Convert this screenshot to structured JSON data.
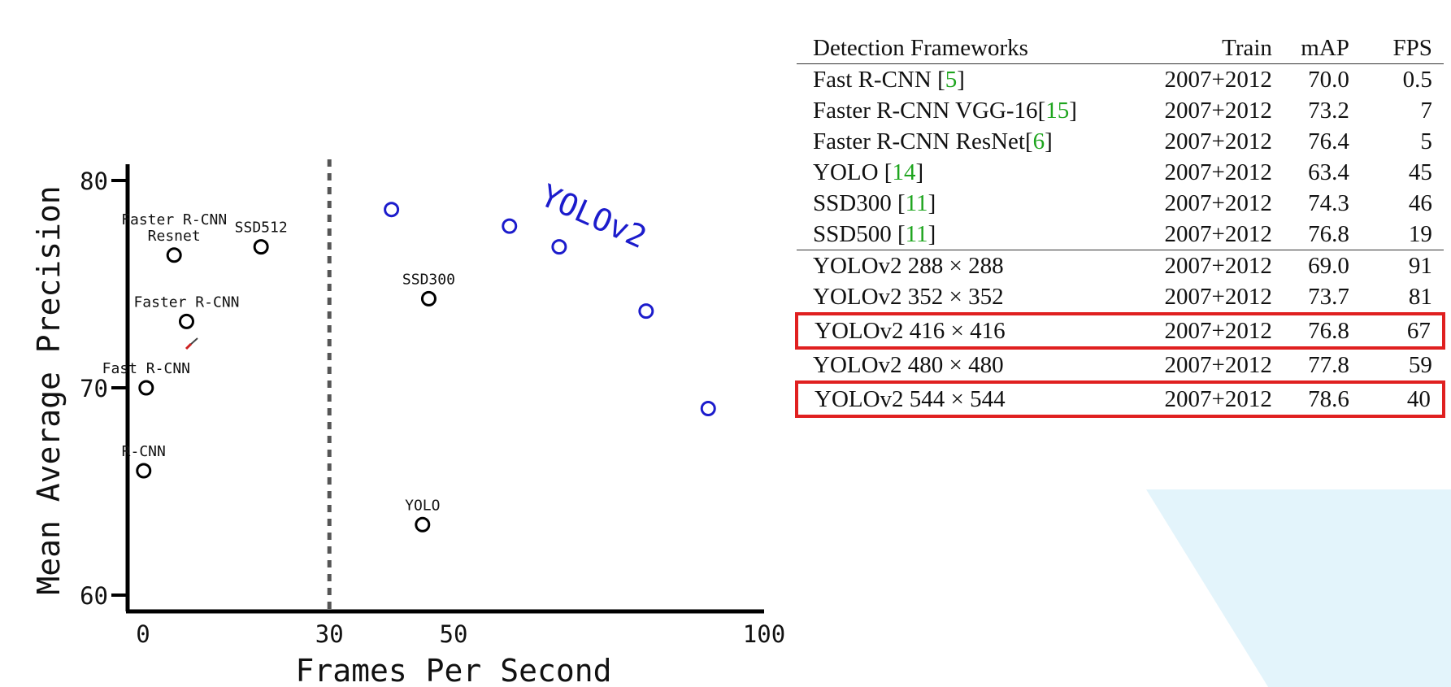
{
  "chart_data": {
    "type": "scatter",
    "xlabel": "Frames Per Second",
    "ylabel": "Mean Average Precision",
    "xlim": [
      0,
      100
    ],
    "ylim": [
      60,
      80
    ],
    "x_ticks": [
      0,
      30,
      50,
      100
    ],
    "y_ticks": [
      60,
      70,
      80
    ],
    "threshold_line": {
      "x": 30,
      "style": "dashed"
    },
    "series": [
      {
        "color": "#000000",
        "points": [
          {
            "label": "Faster R-CNN\nResnet",
            "x": 5,
            "y": 76.4
          },
          {
            "label": "SSD512",
            "x": 19,
            "y": 76.8
          },
          {
            "label": "Faster R-CNN",
            "x": 7,
            "y": 73.2
          },
          {
            "label": "Fast R-CNN",
            "x": 0.5,
            "y": 70.0
          },
          {
            "label": "R-CNN",
            "x": 0.1,
            "y": 66.0
          },
          {
            "label": "SSD300",
            "x": 46,
            "y": 74.3
          },
          {
            "label": "YOLO",
            "x": 45,
            "y": 63.4
          }
        ]
      },
      {
        "name": "YOLOv2",
        "color": "#1c1ccc",
        "points": [
          {
            "x": 40,
            "y": 78.6
          },
          {
            "x": 59,
            "y": 77.8
          },
          {
            "x": 67,
            "y": 76.8
          },
          {
            "x": 81,
            "y": 73.7
          },
          {
            "x": 91,
            "y": 69.0
          }
        ]
      }
    ]
  },
  "table": {
    "headers": [
      "Detection Frameworks",
      "Train",
      "mAP",
      "FPS"
    ],
    "rows": [
      {
        "name": "Fast R-CNN ",
        "ref": "5",
        "train": "2007+2012",
        "map": "70.0",
        "fps": "0.5"
      },
      {
        "name": "Faster R-CNN VGG-16",
        "ref": "15",
        "train": "2007+2012",
        "map": "73.2",
        "fps": "7"
      },
      {
        "name": "Faster R-CNN ResNet",
        "ref": "6",
        "train": "2007+2012",
        "map": "76.4",
        "fps": "5"
      },
      {
        "name": "YOLO ",
        "ref": "14",
        "train": "2007+2012",
        "map": "63.4",
        "fps": "45"
      },
      {
        "name": "SSD300 ",
        "ref": "11",
        "train": "2007+2012",
        "map": "74.3",
        "fps": "46"
      },
      {
        "name": "SSD500 ",
        "ref": "11",
        "train": "2007+2012",
        "map": "76.8",
        "fps": "19"
      },
      {
        "name": "YOLOv2 288 × 288",
        "train": "2007+2012",
        "map": "69.0",
        "fps": "91"
      },
      {
        "name": "YOLOv2 352 × 352",
        "train": "2007+2012",
        "map": "73.7",
        "fps": "81"
      },
      {
        "name": "YOLOv2 416 × 416",
        "train": "2007+2012",
        "map": "76.8",
        "fps": "67",
        "highlight": true
      },
      {
        "name": "YOLOv2 480 × 480",
        "train": "2007+2012",
        "map": "77.8",
        "fps": "59"
      },
      {
        "name": "YOLOv2 544 × 544",
        "train": "2007+2012",
        "map": "78.6",
        "fps": "40",
        "highlight": true,
        "bold_map": true
      }
    ]
  },
  "colors": {
    "reference": "#1ea51e",
    "highlight_box": "#e02020",
    "yolov2": "#1c1ccc",
    "decoration": "#e3f4fb"
  }
}
